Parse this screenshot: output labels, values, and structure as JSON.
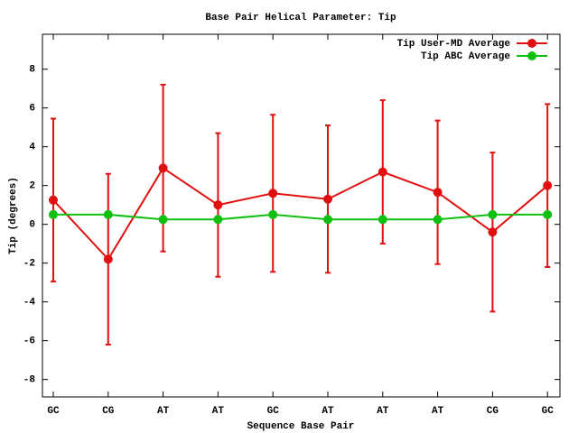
{
  "chart_data": {
    "type": "line",
    "title": "Base Pair Helical Parameter: Tip",
    "xlabel": "Sequence Base Pair",
    "ylabel": "Tip (degrees)",
    "categories": [
      "GC",
      "CG",
      "AT",
      "AT",
      "GC",
      "AT",
      "AT",
      "AT",
      "CG",
      "GC"
    ],
    "series": [
      {
        "name": "Tip User-MD Average",
        "color": "#e01010",
        "values": [
          1.25,
          -1.8,
          2.9,
          1.0,
          1.6,
          1.3,
          2.7,
          1.65,
          -0.4,
          2.0
        ],
        "errors": [
          4.2,
          4.4,
          4.3,
          3.7,
          4.05,
          3.8,
          3.7,
          3.7,
          4.1,
          4.2
        ]
      },
      {
        "name": "Tip ABC Average",
        "color": "#10c010",
        "values": [
          0.5,
          0.5,
          0.25,
          0.25,
          0.5,
          0.25,
          0.25,
          0.25,
          0.5,
          0.5
        ]
      }
    ],
    "ylim": [
      -8.9,
      9.8
    ],
    "yticks": [
      -8,
      -6,
      -4,
      -2,
      0,
      2,
      4,
      6,
      8
    ],
    "legend": "top right"
  }
}
